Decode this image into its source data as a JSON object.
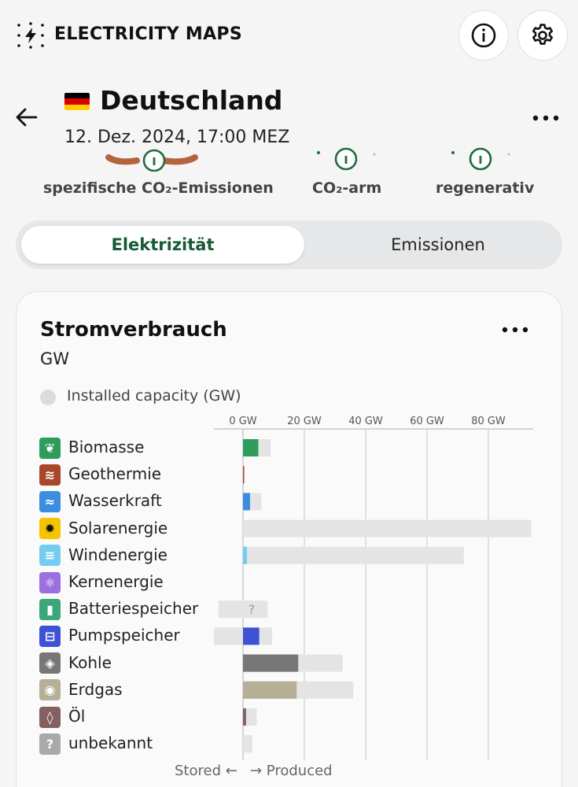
{
  "app": {
    "brand": "ELECTRICITY MAPS"
  },
  "header": {
    "info_icon": "info-icon",
    "settings_icon": "gear-icon"
  },
  "zone": {
    "name": "Deutschland",
    "datetime": "12. Dez. 2024, 17:00 MEZ",
    "flag_colors": [
      "#000000",
      "#dd0000",
      "#ffce00"
    ]
  },
  "stats": [
    {
      "label": "spezifische CO₂-Emissionen"
    },
    {
      "label": "CO₂-arm"
    },
    {
      "label": "regenerativ"
    }
  ],
  "toggle": {
    "options": [
      "Elektrizität",
      "Emissionen"
    ],
    "selected": "Elektrizität"
  },
  "card": {
    "title": "Stromverbrauch",
    "unit": "GW",
    "legend_label": "Installed capacity (GW)",
    "stored_label": "Stored ←",
    "produced_label": "→ Produced"
  },
  "chart_data": {
    "type": "bar",
    "xlabel": "",
    "ticks": [
      "0 GW",
      "20 GW",
      "40 GW",
      "60 GW",
      "80 GW"
    ],
    "xlim": [
      -10,
      95
    ],
    "colors": {
      "capacity": "#e4e4e4",
      "Biomasse": "#2e9d5b",
      "Geothermie": "#a8472a",
      "Wasserkraft": "#3b8de0",
      "Solarenergie": "#f5c400",
      "Windenergie": "#74cdf0",
      "Kernenergie": "#9c6fe0",
      "Batteriespeicher": "#3aa77a",
      "Pumpspeicher": "#3d52d5",
      "Kohle": "#777777",
      "Erdgas": "#b7ae98",
      "Öl": "#856060",
      "unbekannt": "#a9a9a9"
    },
    "categories": [
      "Biomasse",
      "Geothermie",
      "Wasserkraft",
      "Solarenergie",
      "Windenergie",
      "Kernenergie",
      "Batteriespeicher",
      "Pumpspeicher",
      "Kohle",
      "Erdgas",
      "Öl",
      "unbekannt"
    ],
    "series": [
      {
        "values": [
          5.0,
          0.2,
          2.3,
          0.0,
          1.3,
          0.0,
          0.0,
          5.3,
          18.0,
          17.5,
          1.0,
          0.0
        ]
      },
      {
        "values": [
          9.0,
          0.4,
          6.0,
          94.0,
          72.0,
          0.0,
          8.0,
          9.5,
          32.5,
          36.0,
          4.5,
          3.0
        ]
      },
      {
        "values": [
          0,
          0,
          0,
          0,
          0,
          0,
          -8.0,
          -9.5,
          0,
          0,
          0,
          0
        ]
      }
    ],
    "unknown_marker": "?"
  }
}
